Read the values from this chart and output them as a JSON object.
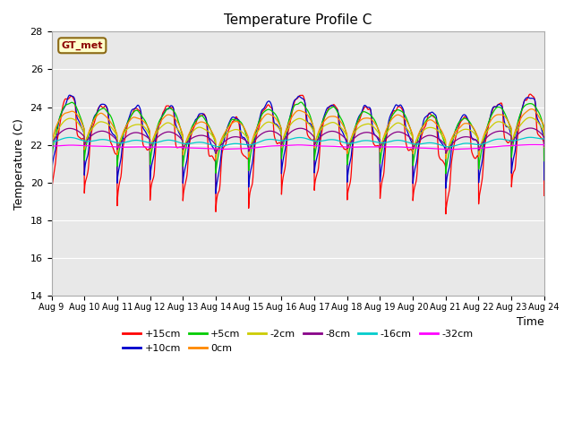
{
  "title": "Temperature Profile C",
  "xlabel": "Time",
  "ylabel": "Temperature (C)",
  "ylim": [
    14,
    28
  ],
  "xlim_days": [
    0,
    15
  ],
  "x_tick_labels": [
    "Aug 9",
    "Aug 10",
    "Aug 11",
    "Aug 12",
    "Aug 13",
    "Aug 14",
    "Aug 15",
    "Aug 16",
    "Aug 17",
    "Aug 18",
    "Aug 19",
    "Aug 20",
    "Aug 21",
    "Aug 22",
    "Aug 23",
    "Aug 24"
  ],
  "series": [
    {
      "label": "+15cm",
      "color": "#ff0000"
    },
    {
      "label": "+10cm",
      "color": "#0000cc"
    },
    {
      "label": "+5cm",
      "color": "#00cc00"
    },
    {
      "label": "0cm",
      "color": "#ff8800"
    },
    {
      "label": "-2cm",
      "color": "#cccc00"
    },
    {
      "label": "-8cm",
      "color": "#880088"
    },
    {
      "label": "-16cm",
      "color": "#00cccc"
    },
    {
      "label": "-32cm",
      "color": "#ff00ff"
    }
  ],
  "annotation_text": "GT_met",
  "background_color": "#ffffff",
  "plot_bg_color": "#e8e8e8",
  "title_fontsize": 11,
  "axis_label_fontsize": 9,
  "tick_fontsize": 8
}
